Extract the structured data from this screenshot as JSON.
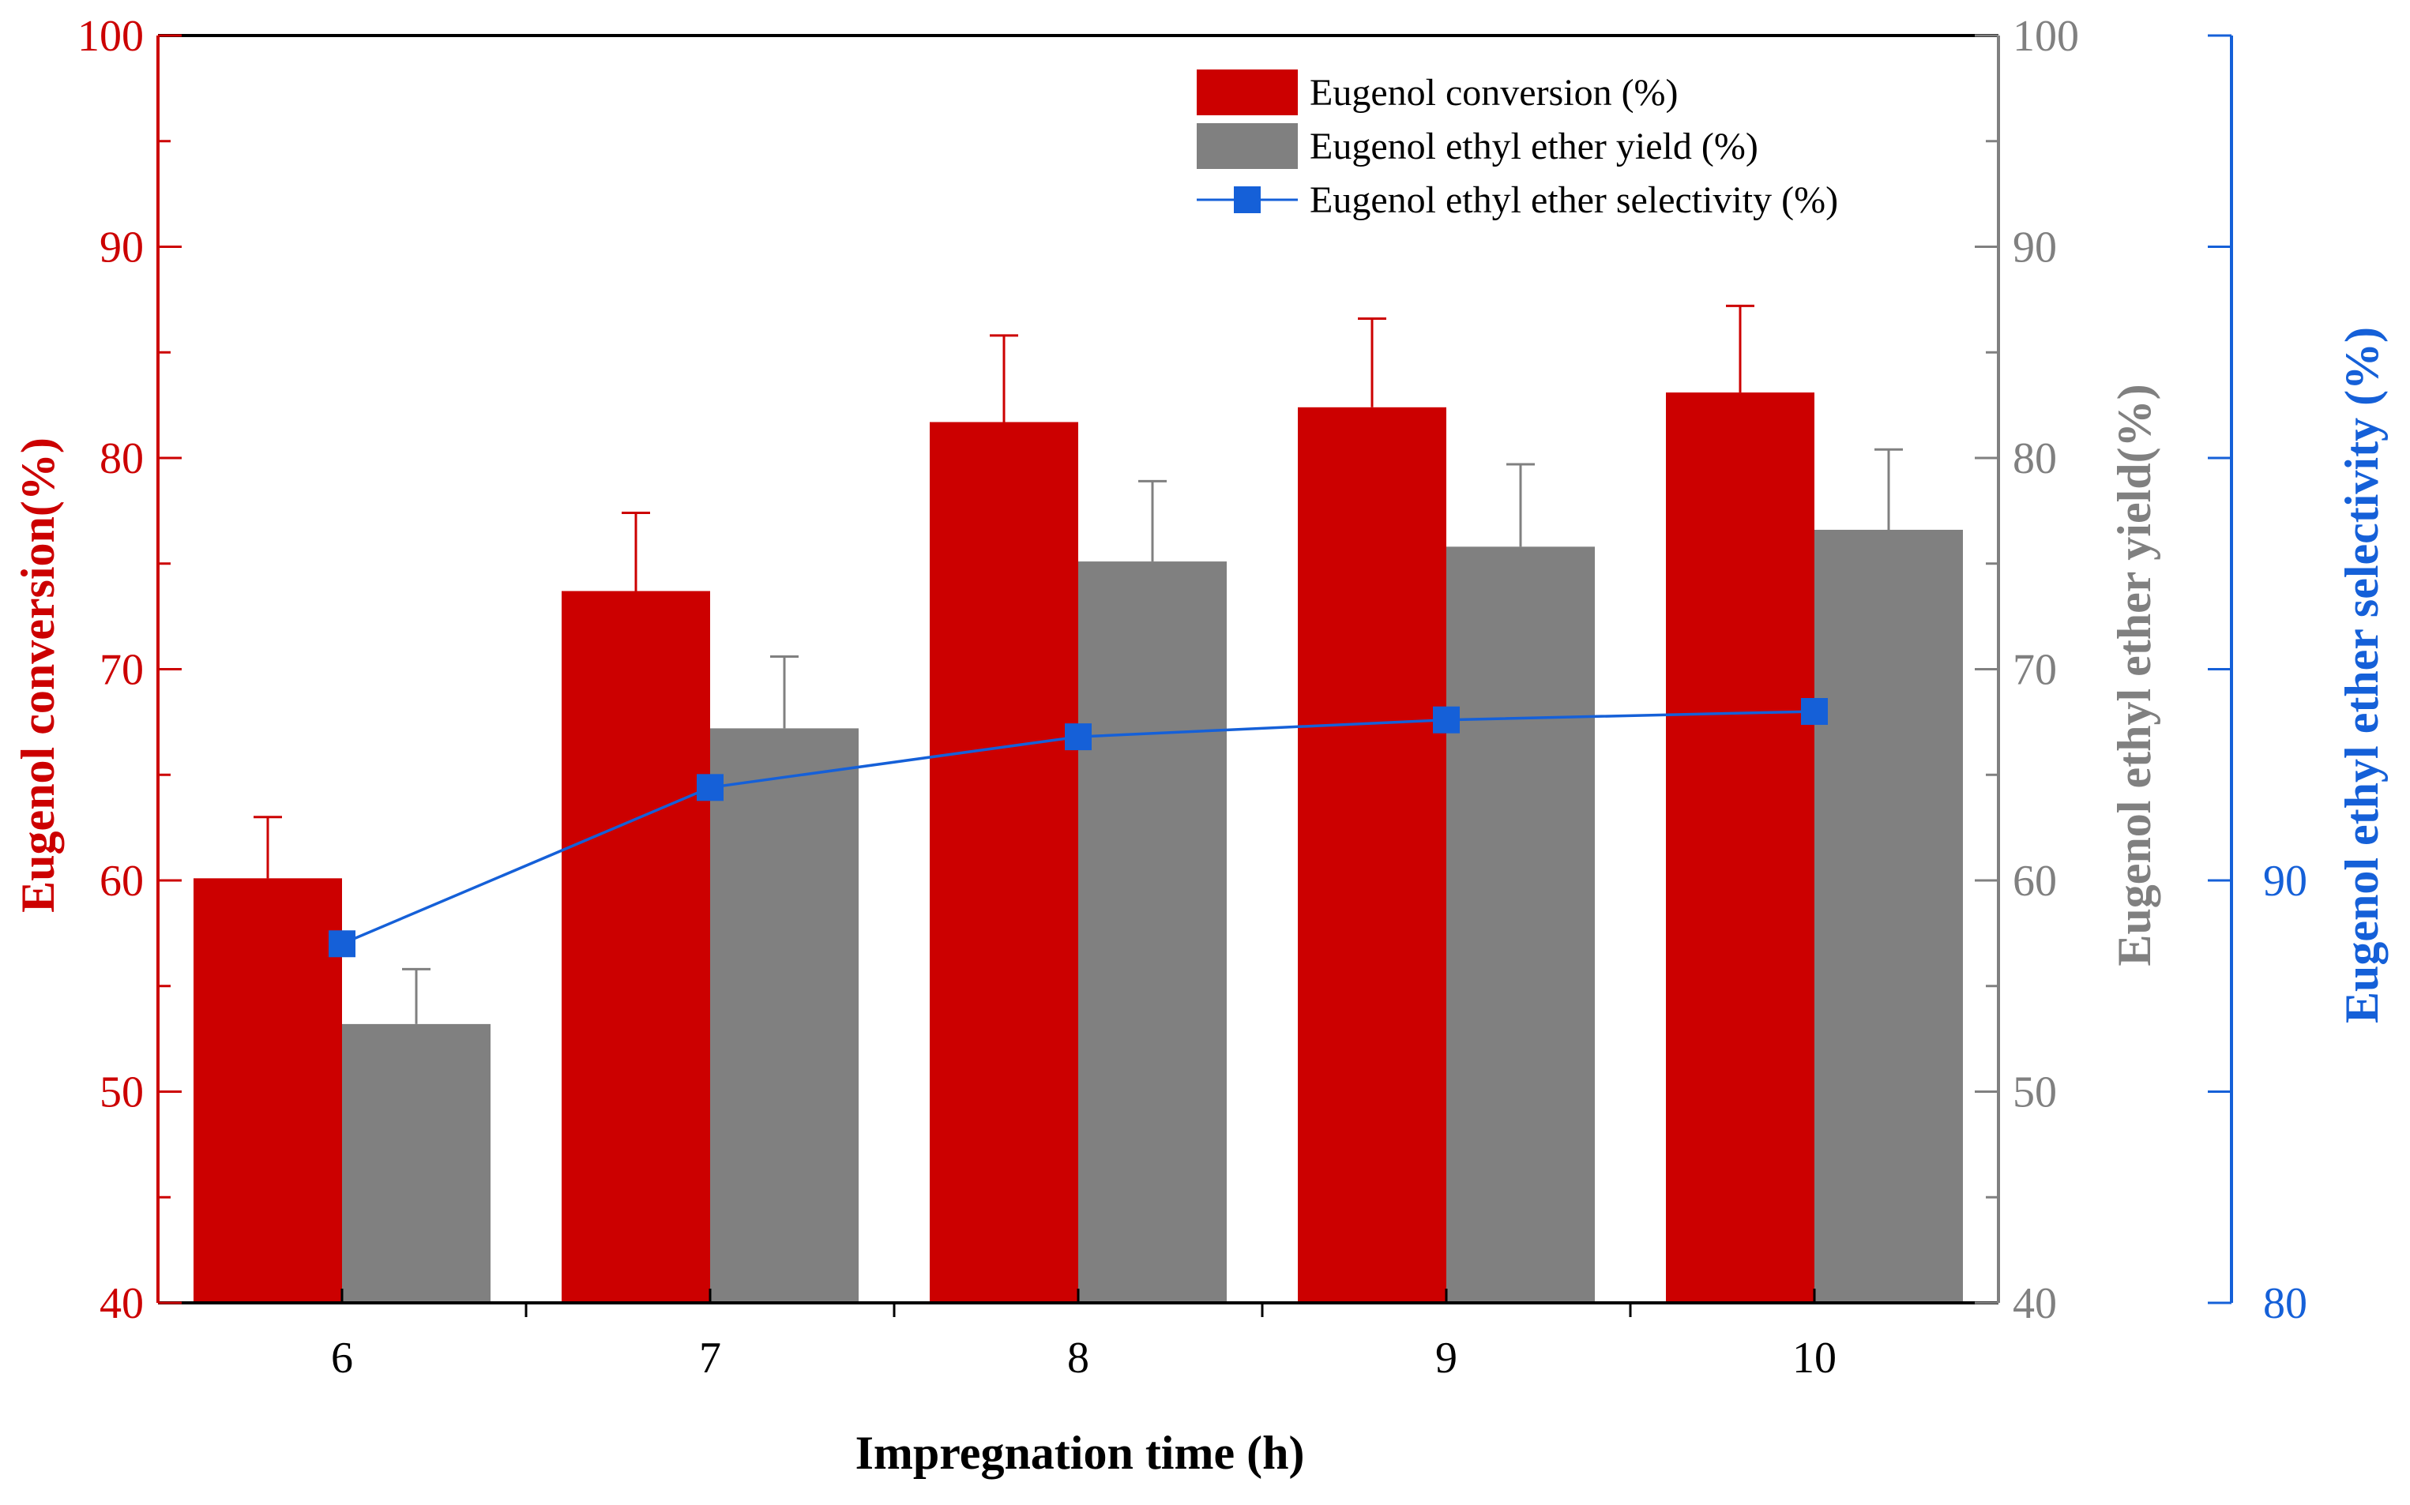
{
  "chart_data": {
    "type": "bar",
    "categories": [
      "6",
      "7",
      "8",
      "9",
      "10"
    ],
    "xlabel": "Impregnation time (h)",
    "series": [
      {
        "name": "Eugenol conversion (%)",
        "kind": "bar",
        "axis": "left",
        "color": "#cc0000",
        "values": [
          60.1,
          73.7,
          81.7,
          82.4,
          83.1
        ],
        "errors": [
          2.9,
          3.7,
          4.1,
          4.2,
          4.1
        ]
      },
      {
        "name": "Eugenol ethyl ether yield (%)",
        "kind": "bar",
        "axis": "middle",
        "color": "#808080",
        "values": [
          53.2,
          67.2,
          75.1,
          75.8,
          76.6
        ],
        "errors": [
          2.6,
          3.4,
          3.8,
          3.9,
          3.8
        ]
      },
      {
        "name": "Eugenol ethyl ether selectivity (%)",
        "kind": "line",
        "axis": "right",
        "color": "#1560d8",
        "values": [
          88.5,
          92.2,
          93.4,
          93.8,
          94.0
        ]
      }
    ],
    "axes": {
      "left": {
        "label": "Eugenol conversion(%)",
        "color": "#cc0000",
        "ylim": [
          40,
          100
        ],
        "ticks": [
          "40",
          "50",
          "60",
          "70",
          "80",
          "90",
          "100"
        ]
      },
      "middle": {
        "label": "Eugenol ethyl ether yield(%)",
        "color": "#808080",
        "ylim": [
          40,
          100
        ],
        "ticks": [
          "40",
          "50",
          "60",
          "70",
          "80",
          "90",
          "100"
        ]
      },
      "right": {
        "label": "Eugenol ethyl ether selectivity (%)",
        "color": "#1560d8",
        "ylim": [
          80,
          110
        ],
        "ticks": [
          "80",
          "90"
        ]
      }
    },
    "legend": "top-right",
    "grid": false
  }
}
